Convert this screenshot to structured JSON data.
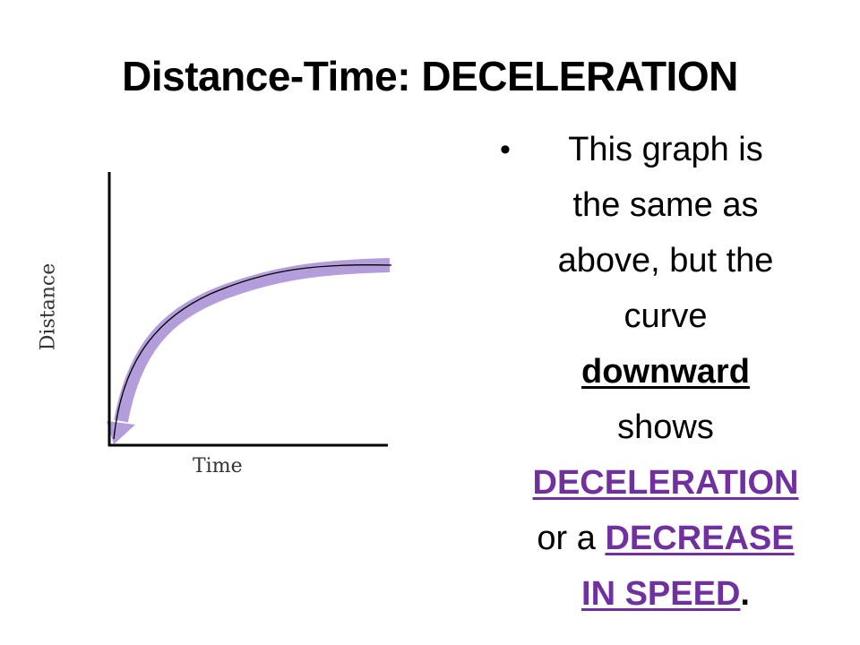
{
  "slide": {
    "title": "Distance-Time: DECELERATION"
  },
  "graph": {
    "y_label": "Distance",
    "x_label": "Time",
    "curve": "decelerating",
    "arrow_color": "#b39ddb",
    "line_color": "#000000"
  },
  "bullet": {
    "icon": "bullet-dot",
    "line1": "This graph is",
    "line2": "the same as",
    "line3": "above, but the",
    "line4": "curve",
    "line5_emph": "downward",
    "line6": "shows",
    "line7_accent": "DECELERATION",
    "line8_pre": "or a ",
    "line8_accent": "DECREASE",
    "line9_accent": "IN SPEED",
    "line9_post": ".",
    "accent_color": "#7030a0"
  }
}
